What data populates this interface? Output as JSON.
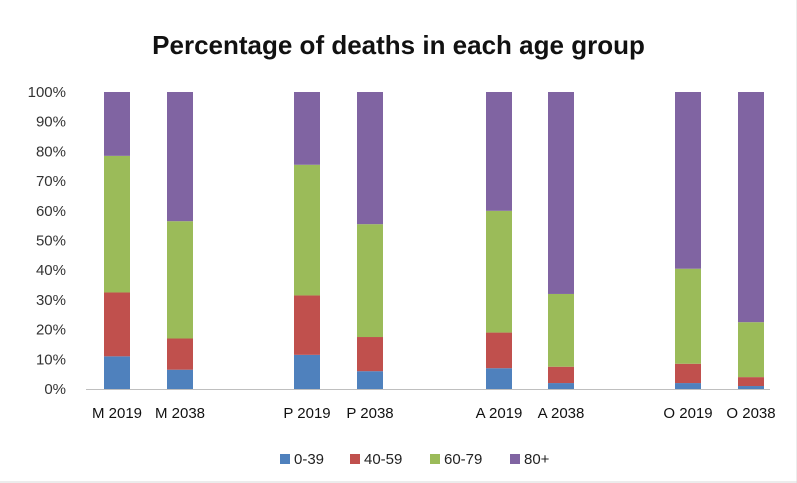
{
  "chart_data": {
    "type": "bar",
    "stacked": true,
    "percent_stacked": true,
    "title": "Percentage of deaths in each age group",
    "xlabel": "",
    "ylabel": "",
    "ylim": [
      0,
      100
    ],
    "yticks": [
      "0%",
      "10%",
      "20%",
      "30%",
      "40%",
      "50%",
      "60%",
      "70%",
      "80%",
      "90%",
      "100%"
    ],
    "grid": false,
    "legend_position": "bottom",
    "categories": [
      "M 2019",
      "M 2038",
      "P 2019",
      "P 2038",
      "A 2019",
      "A 2038",
      "O 2019",
      "O 2038"
    ],
    "series": [
      {
        "name": "0-39",
        "color": "#4f81bd",
        "values": [
          11,
          6.5,
          11.5,
          6,
          7,
          2,
          2,
          1
        ]
      },
      {
        "name": "40-59",
        "color": "#c0504d",
        "values": [
          21.5,
          10.5,
          20,
          11.5,
          12,
          5.5,
          6.5,
          3
        ]
      },
      {
        "name": "60-79",
        "color": "#9bbb59",
        "values": [
          46,
          39.5,
          44,
          38,
          41,
          24.5,
          32,
          18.5
        ]
      },
      {
        "name": "80+",
        "color": "#8064a2",
        "values": [
          21.5,
          43.5,
          24.5,
          44.5,
          40,
          68,
          59.5,
          77.5
        ]
      }
    ]
  }
}
